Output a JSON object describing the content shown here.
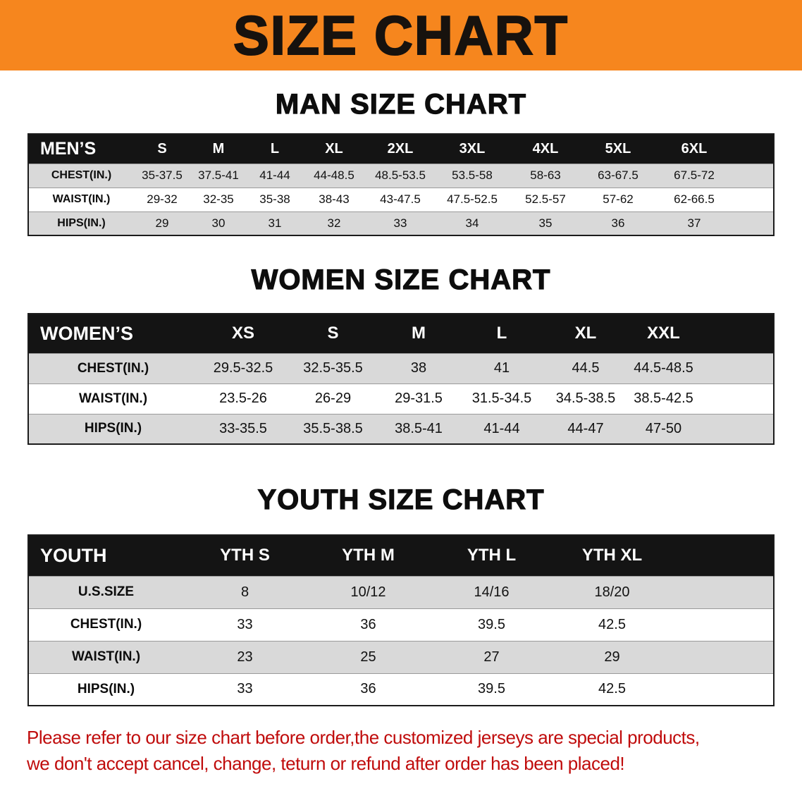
{
  "banner": {
    "title": "SIZE CHART",
    "bg_color": "#F6861E",
    "text_color": "#17120E"
  },
  "sections": {
    "men": {
      "heading": "MAN SIZE CHART",
      "table": {
        "header": [
          "MEN’S",
          "S",
          "M",
          "L",
          "XL",
          "2XL",
          "3XL",
          "4XL",
          "5XL",
          "6XL"
        ],
        "rows": [
          [
            "CHEST(IN.)",
            "35-37.5",
            "37.5-41",
            "41-44",
            "44-48.5",
            "48.5-53.5",
            "53.5-58",
            "58-63",
            "63-67.5",
            "67.5-72"
          ],
          [
            "WAIST(IN.)",
            "29-32",
            "32-35",
            "35-38",
            "38-43",
            "43-47.5",
            "47.5-52.5",
            "52.5-57",
            "57-62",
            "62-66.5"
          ],
          [
            "HIPS(IN.)",
            "29",
            "30",
            "31",
            "32",
            "33",
            "34",
            "35",
            "36",
            "37"
          ]
        ]
      }
    },
    "women": {
      "heading": "WOMEN SIZE CHART",
      "table": {
        "header": [
          "WOMEN’S",
          "XS",
          "S",
          "M",
          "L",
          "XL",
          "XXL"
        ],
        "rows": [
          [
            "CHEST(IN.)",
            "29.5-32.5",
            "32.5-35.5",
            "38",
            "41",
            "44.5",
            "44.5-48.5"
          ],
          [
            "WAIST(IN.)",
            "23.5-26",
            "26-29",
            "29-31.5",
            "31.5-34.5",
            "34.5-38.5",
            "38.5-42.5"
          ],
          [
            "HIPS(IN.)",
            "33-35.5",
            "35.5-38.5",
            "38.5-41",
            "41-44",
            "44-47",
            "47-50"
          ]
        ]
      }
    },
    "youth": {
      "heading": "YOUTH SIZE CHART",
      "table": {
        "header": [
          "YOUTH",
          "YTH S",
          "YTH M",
          "YTH L",
          "YTH XL"
        ],
        "rows": [
          [
            "U.S.SIZE",
            "8",
            "10/12",
            "14/16",
            "18/20"
          ],
          [
            "CHEST(IN.)",
            "33",
            "36",
            "39.5",
            "42.5"
          ],
          [
            "WAIST(IN.)",
            "23",
            "25",
            "27",
            "29"
          ],
          [
            "HIPS(IN.)",
            "33",
            "36",
            "39.5",
            "42.5"
          ]
        ]
      }
    }
  },
  "disclaimer": {
    "line1": "Please refer to our size chart before order,the customized jerseys are special products,",
    "line2": "we don't accept cancel, change, teturn or refund after order has been placed!",
    "text_color": "#C00C0C"
  },
  "colors": {
    "header_row_bg": "#141414",
    "header_row_text": "#FFFFFF",
    "stripe_row_bg": "#D9D9D9"
  }
}
